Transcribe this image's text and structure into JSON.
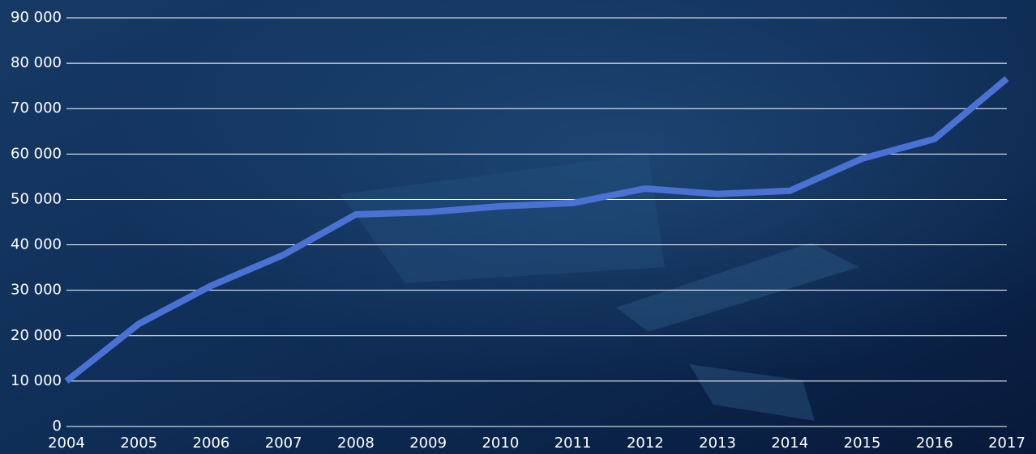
{
  "chart_data": {
    "type": "line",
    "categories": [
      "2004",
      "2005",
      "2006",
      "2007",
      "2008",
      "2009",
      "2010",
      "2011",
      "2012",
      "2013",
      "2014",
      "2015",
      "2016",
      "2017"
    ],
    "series": [
      {
        "color": "#4a72d4",
        "values": [
          10000,
          22600,
          31000,
          37800,
          46700,
          47200,
          48500,
          49200,
          52400,
          51200,
          51900,
          59000,
          63300,
          76600
        ]
      }
    ],
    "ylim": [
      0,
      90000
    ],
    "yticks": [
      0,
      {
        "value": 10000,
        "label": "10 000"
      },
      {
        "value": 20000,
        "label": "20 000"
      },
      {
        "value": 30000,
        "label": "30 000"
      },
      {
        "value": 40000,
        "label": "40 000"
      },
      {
        "value": 50000,
        "label": "50 000"
      },
      {
        "value": 60000,
        "label": "60 000"
      },
      {
        "value": 70000,
        "label": "70 000"
      },
      {
        "value": 80000,
        "label": "80 000"
      },
      {
        "value": 90000,
        "label": "90 000"
      }
    ],
    "grid": true
  }
}
